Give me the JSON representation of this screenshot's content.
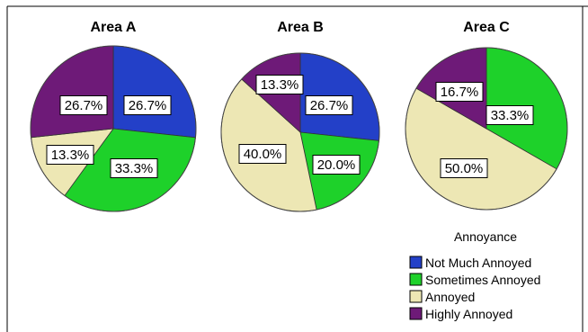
{
  "chart_data": {
    "type": "pie",
    "legend": {
      "title": "Annoyance",
      "position": "bottom-right",
      "entries": [
        {
          "label": "Not Much Annoyed",
          "color": "#2340c8"
        },
        {
          "label": "Sometimes Annoyed",
          "color": "#1ed12a"
        },
        {
          "label": "Annoyed",
          "color": "#ede7b4"
        },
        {
          "label": "Highly Annoyed",
          "color": "#6e1a78"
        }
      ]
    },
    "charts": [
      {
        "title": "Area A",
        "slices": [
          {
            "category": "Not Much Annoyed",
            "value": 26.7,
            "label": "26.7%"
          },
          {
            "category": "Sometimes Annoyed",
            "value": 33.3,
            "label": "33.3%"
          },
          {
            "category": "Annoyed",
            "value": 13.3,
            "label": "13.3%"
          },
          {
            "category": "Highly Annoyed",
            "value": 26.7,
            "label": "26.7%"
          }
        ]
      },
      {
        "title": "Area B",
        "slices": [
          {
            "category": "Not Much Annoyed",
            "value": 26.7,
            "label": "26.7%"
          },
          {
            "category": "Sometimes Annoyed",
            "value": 20.0,
            "label": "20.0%"
          },
          {
            "category": "Annoyed",
            "value": 40.0,
            "label": "40.0%"
          },
          {
            "category": "Highly Annoyed",
            "value": 13.3,
            "label": "13.3%"
          }
        ]
      },
      {
        "title": "Area C",
        "slices": [
          {
            "category": "Sometimes Annoyed",
            "value": 33.3,
            "label": "33.3%"
          },
          {
            "category": "Annoyed",
            "value": 50.0,
            "label": "50.0%"
          },
          {
            "category": "Highly Annoyed",
            "value": 16.7,
            "label": "16.7%"
          }
        ]
      }
    ]
  }
}
